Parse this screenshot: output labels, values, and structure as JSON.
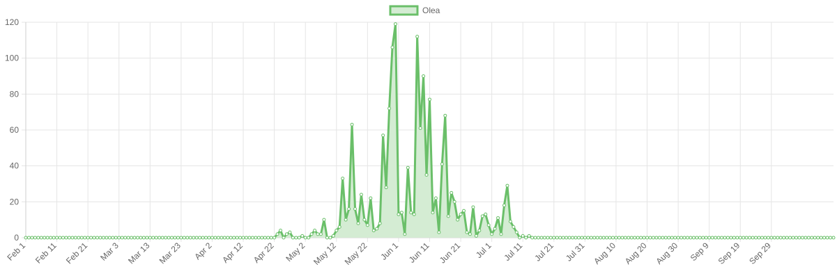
{
  "chart_data": {
    "type": "line",
    "legend": {
      "position": "top",
      "label": "Olea"
    },
    "colors": {
      "line": "#6abf69",
      "fill": "#d4ecd3",
      "point_fill": "#ffffff",
      "grid": "#e5e5e5",
      "text": "#666666"
    },
    "x_start": "Feb 1",
    "x_tick_labels": [
      "Feb 1",
      "Feb 11",
      "Feb 21",
      "Mar 3",
      "Mar 13",
      "Mar 23",
      "Apr 2",
      "Apr 12",
      "Apr 22",
      "May 2",
      "May 12",
      "May 22",
      "Jun 1",
      "Jun 11",
      "Jun 21",
      "Jul 1",
      "Jul 11",
      "Jul 21",
      "Jul 31",
      "Aug 10",
      "Aug 20",
      "Aug 30",
      "Sep 9",
      "Sep 19",
      "Sep 29"
    ],
    "x_tick_every_days": 10,
    "y_ticks": [
      0,
      20,
      40,
      60,
      80,
      100,
      120
    ],
    "ylim": [
      0,
      120
    ],
    "grid": true,
    "series": [
      {
        "name": "Olea",
        "values": [
          0,
          0,
          0,
          0,
          0,
          0,
          0,
          0,
          0,
          0,
          0,
          0,
          0,
          0,
          0,
          0,
          0,
          0,
          0,
          0,
          0,
          0,
          0,
          0,
          0,
          0,
          0,
          0,
          0,
          0,
          0,
          0,
          0,
          0,
          0,
          0,
          0,
          0,
          0,
          0,
          0,
          0,
          0,
          0,
          0,
          0,
          0,
          0,
          0,
          0,
          0,
          0,
          0,
          0,
          0,
          0,
          0,
          0,
          0,
          0,
          0,
          0,
          0,
          0,
          0,
          0,
          0,
          0,
          0,
          0,
          0,
          0,
          0,
          0,
          0,
          0,
          0,
          0,
          0,
          0,
          0,
          2,
          4,
          0,
          2,
          3,
          0,
          0,
          0,
          1,
          0,
          0,
          2,
          4,
          2,
          2,
          10,
          0,
          0,
          1,
          4,
          6,
          33,
          10,
          16,
          63,
          16,
          8,
          24,
          10,
          7,
          22,
          4,
          5,
          8,
          57,
          28,
          72,
          106,
          119,
          13,
          14,
          2,
          39,
          14,
          13,
          112,
          61,
          90,
          35,
          77,
          14,
          22,
          3,
          41,
          68,
          12,
          25,
          20,
          10,
          13,
          15,
          3,
          2,
          17,
          1,
          4,
          12,
          13,
          7,
          2,
          5,
          11,
          2,
          18,
          29,
          9,
          6,
          3,
          0,
          1,
          0,
          1,
          0,
          0,
          0,
          0,
          0,
          0,
          0,
          0,
          0,
          0,
          0,
          0,
          0,
          0,
          0,
          0,
          0,
          0,
          0,
          0,
          0,
          0,
          0,
          0,
          0,
          0,
          0,
          0,
          0,
          0,
          0,
          0,
          0,
          0,
          0,
          0,
          0,
          0,
          0,
          0,
          0,
          0,
          0,
          0,
          0,
          0,
          0,
          0,
          0,
          0,
          0,
          0,
          0,
          0,
          0,
          0,
          0,
          0,
          0,
          0,
          0,
          0,
          0,
          0,
          0,
          0,
          0,
          0,
          0,
          0,
          0,
          0,
          0,
          0,
          0,
          0,
          0,
          0,
          0,
          0,
          0,
          0,
          0,
          0,
          0,
          0,
          0,
          0,
          0,
          0,
          0,
          0,
          0,
          0,
          0,
          0,
          0,
          0
        ]
      }
    ]
  }
}
